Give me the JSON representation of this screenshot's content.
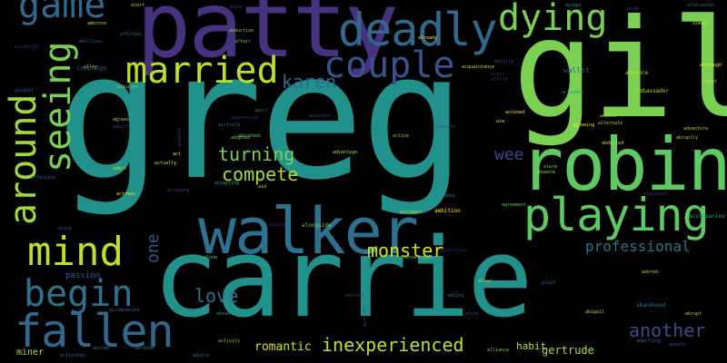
{
  "words": [
    {
      "text": "greg",
      "color": "#21918c"
    },
    {
      "text": "carrie",
      "color": "#21918c"
    },
    {
      "text": "gil",
      "color": "#7ad151"
    },
    {
      "text": "robin",
      "color": "#5ec962"
    },
    {
      "text": "patty",
      "color": "#46327e"
    },
    {
      "text": "walker",
      "color": "#2c728e"
    },
    {
      "text": "deadly",
      "color": "#31688e"
    },
    {
      "text": "playing",
      "color": "#5ec962"
    },
    {
      "text": "dying",
      "color": "#7ad151"
    },
    {
      "text": "couple",
      "color": "#3b528b"
    },
    {
      "text": "married",
      "color": "#bddf26"
    },
    {
      "text": "fallen",
      "color": "#31688e"
    },
    {
      "text": "mind",
      "color": "#bddf26"
    },
    {
      "text": "begin",
      "color": "#2c728e"
    },
    {
      "text": "game",
      "color": "#31688e"
    },
    {
      "text": "seeing",
      "color": "#7ad151"
    },
    {
      "text": "around",
      "color": "#a0da39"
    },
    {
      "text": "inexperienced",
      "color": "#bddf26"
    },
    {
      "text": "monster",
      "color": "#d2e21b"
    },
    {
      "text": "love",
      "color": "#2c728e"
    },
    {
      "text": "another",
      "color": "#3e4989"
    },
    {
      "text": "compete",
      "color": "#addc30"
    },
    {
      "text": "turning",
      "color": "#7ad151"
    },
    {
      "text": "karen",
      "color": "#31688e"
    },
    {
      "text": "professional",
      "color": "#2c728e"
    },
    {
      "text": "wee",
      "color": "#414487"
    },
    {
      "text": "one",
      "color": "#3b528b"
    },
    {
      "text": "romantic",
      "color": "#d2e21b"
    },
    {
      "text": "gertrude",
      "color": "#addc30"
    },
    {
      "text": "habit",
      "color": "#bddf26"
    },
    {
      "text": "miner",
      "color": "#addc30"
    },
    {
      "text": "passion",
      "color": "#355f8d"
    },
    {
      "text": "wallet",
      "color": "#3b528b"
    },
    {
      "text": "advance",
      "color": "#bddf26"
    },
    {
      "text": "accompanies",
      "color": "#22a884"
    },
    {
      "text": "alongside",
      "color": "#7ad151"
    },
    {
      "text": "acknowledges",
      "color": "#5ec962"
    },
    {
      "text": "activities",
      "color": "#472c7a"
    },
    {
      "text": "abandoned",
      "color": "#2c728e"
    },
    {
      "text": "ambition",
      "color": "#fde725"
    },
    {
      "text": "ambassador",
      "color": "#addc30"
    },
    {
      "text": "abducted",
      "color": "#b5de2b"
    },
    {
      "text": "alexander",
      "color": "#46327e"
    },
    {
      "text": "accepts",
      "color": "#3b528b"
    },
    {
      "text": "aim",
      "color": "#addc30"
    },
    {
      "text": "aid",
      "color": "#bddf26"
    },
    {
      "text": "aloof",
      "color": "#2c728e"
    },
    {
      "text": "abbey",
      "color": "#2a788e"
    },
    {
      "text": "aspire",
      "color": "#46327e"
    },
    {
      "text": "activate",
      "color": "#21918c"
    },
    {
      "text": "airport",
      "color": "#3b528b"
    },
    {
      "text": "address",
      "color": "#46327e"
    },
    {
      "text": "aircraft",
      "color": "#3b528b"
    },
    {
      "text": "alibi",
      "color": "#3b528b"
    },
    {
      "text": "activity",
      "color": "#7ad151"
    },
    {
      "text": "advice",
      "color": "#2c728e"
    },
    {
      "text": "abraham",
      "color": "#2c728e"
    },
    {
      "text": "alliance",
      "color": "#7ad151"
    },
    {
      "text": "admitting",
      "color": "#31688e"
    },
    {
      "text": "adored",
      "color": "#addc30"
    },
    {
      "text": "abigail",
      "color": "#addc30"
    },
    {
      "text": "aboard",
      "color": "#3e4989"
    },
    {
      "text": "adopt",
      "color": "#bddf26"
    },
    {
      "text": "actress",
      "color": "#fde725"
    },
    {
      "text": "admit",
      "color": "#bddf26"
    },
    {
      "text": "act",
      "color": "#fde725"
    },
    {
      "text": "actually",
      "color": "#d2e21b"
    },
    {
      "text": "accusing",
      "color": "#3e4989"
    },
    {
      "text": "advantage",
      "color": "#addc30"
    },
    {
      "text": "active",
      "color": "#7ad151"
    },
    {
      "text": "abrupt",
      "color": "#a0da39"
    },
    {
      "text": "abruptly",
      "color": "#addc30"
    },
    {
      "text": "ahead",
      "color": "#21918c"
    },
    {
      "text": "alone",
      "color": "#5ec962"
    },
    {
      "text": "adding",
      "color": "#2c728e"
    },
    {
      "text": "altar",
      "color": "#addc30"
    },
    {
      "text": "accompanied",
      "color": "#355f8d"
    },
    {
      "text": "along",
      "color": "#3e4989"
    },
    {
      "text": "accident",
      "color": "#bddf26"
    },
    {
      "text": "activated",
      "color": "#2c728e"
    },
    {
      "text": "abduction",
      "color": "#7ad151"
    },
    {
      "text": "affair",
      "color": "#5ec962"
    },
    {
      "text": "acquaintance",
      "color": "#bddf26"
    },
    {
      "text": "acquires",
      "color": "#7ad151"
    },
    {
      "text": "ambitious",
      "color": "#3b528b"
    },
    {
      "text": "already",
      "color": "#fde725"
    },
    {
      "text": "agreeing",
      "color": "#fde725"
    },
    {
      "text": "adventure",
      "color": "#addc30"
    },
    {
      "text": "advise",
      "color": "#bddf26"
    },
    {
      "text": "abuse",
      "color": "#472c7a"
    },
    {
      "text": "alert",
      "color": "#a0da39"
    },
    {
      "text": "alcoholic",
      "color": "#46327e"
    },
    {
      "text": "affection",
      "color": "#2c728e"
    },
    {
      "text": "afterwards",
      "color": "#2c728e"
    },
    {
      "text": "although",
      "color": "#fde725"
    },
    {
      "text": "always",
      "color": "#bddf26"
    },
    {
      "text": "alarm",
      "color": "#7ad151"
    },
    {
      "text": "absence",
      "color": "#a0da39"
    },
    {
      "text": "agreement",
      "color": "#5ec962"
    },
    {
      "text": "accepting",
      "color": "#22a884"
    },
    {
      "text": "acid",
      "color": "#3e4989"
    },
    {
      "text": "accept",
      "color": "#21918c"
    },
    {
      "text": "aggressive",
      "color": "#472c7a"
    },
    {
      "text": "adult",
      "color": "#31688e"
    },
    {
      "text": "ability",
      "color": "#3e4989"
    },
    {
      "text": "alcohol",
      "color": "#2c728e"
    },
    {
      "text": "afford",
      "color": "#46327e"
    },
    {
      "text": "alley",
      "color": "#addc30"
    },
    {
      "text": "airfield",
      "color": "#2c728e"
    },
    {
      "text": "admire",
      "color": "#46327e"
    },
    {
      "text": "absorbed",
      "color": "#5ec962"
    },
    {
      "text": "abroad",
      "color": "#2c728e"
    },
    {
      "text": "accounts",
      "color": "#3e4989"
    },
    {
      "text": "actor",
      "color": "#472c7a"
    },
    {
      "text": "adopted",
      "color": "#7ad151"
    },
    {
      "text": "agrees",
      "color": "#a0da39"
    },
    {
      "text": "alternate",
      "color": "#a0da39"
    },
    {
      "text": "accused",
      "color": "#fde725"
    },
    {
      "text": "ambrose",
      "color": "#addc30"
    },
    {
      "text": "campaign",
      "color": "#3b528b"
    },
    {
      "text": "attorney",
      "color": "#2c728e"
    }
  ]
}
